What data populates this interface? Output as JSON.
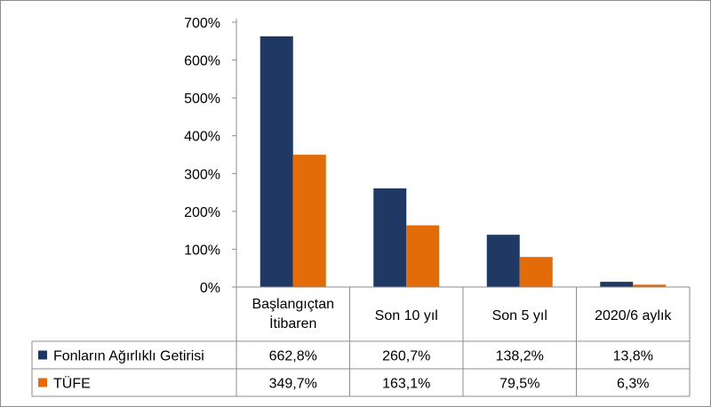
{
  "chart_data": {
    "type": "bar",
    "title": "",
    "xlabel": "",
    "ylabel": "",
    "categories": [
      [
        "Başlangıçtan",
        "İtibaren"
      ],
      [
        "Son 10 yıl"
      ],
      [
        "Son 5 yıl"
      ],
      [
        "2020/6 aylık"
      ]
    ],
    "series": [
      {
        "name": "Fonların Ağırlıklı Getirisi",
        "color": "#1f3864",
        "values": [
          662.8,
          260.7,
          138.2,
          13.8
        ],
        "labels": [
          "662,8%",
          "260,7%",
          "138,2%",
          "13,8%"
        ]
      },
      {
        "name": "TÜFE",
        "color": "#e36c09",
        "values": [
          349.7,
          163.1,
          79.5,
          6.3
        ],
        "labels": [
          "349,7%",
          "163,1%",
          "79,5%",
          "6,3%"
        ]
      }
    ],
    "ylim": [
      0,
      700
    ],
    "yticks": [
      0,
      100,
      200,
      300,
      400,
      500,
      600,
      700
    ],
    "ytick_labels": [
      "0%",
      "100%",
      "200%",
      "300%",
      "400%",
      "500%",
      "600%",
      "700%"
    ],
    "grid": false,
    "legend": "data-table-below"
  }
}
